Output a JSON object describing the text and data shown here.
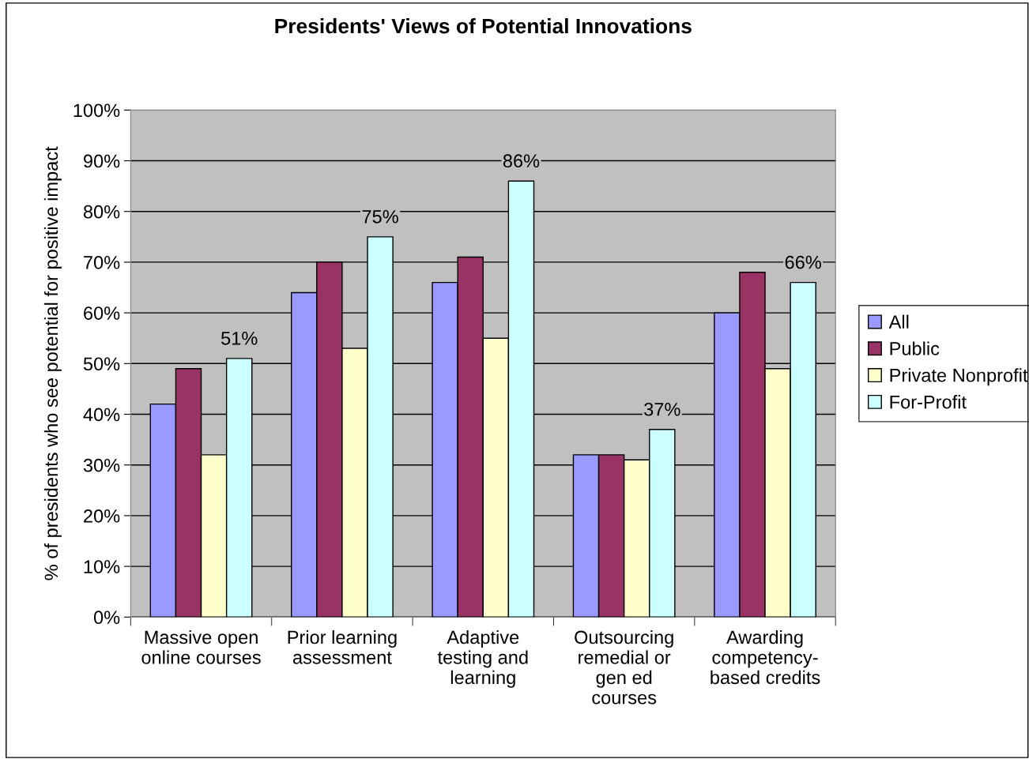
{
  "chart_data": {
    "type": "bar",
    "title": "Presidents' Views of Potential Innovations",
    "ylabel": "% of presidents who see potential for positive impact",
    "categories": [
      "Massive open\nonline courses",
      "Prior learning\nassessment",
      "Adaptive\ntesting and\nlearning",
      "Outsourcing\nremedial or\ngen ed\ncourses",
      "Awarding\ncompetency-\nbased credits"
    ],
    "series": [
      {
        "name": "All",
        "color": "#9999ff",
        "values": [
          42,
          64,
          66,
          32,
          60
        ]
      },
      {
        "name": "Public",
        "color": "#993366",
        "values": [
          49,
          70,
          71,
          32,
          68
        ]
      },
      {
        "name": "Private Nonprofit",
        "color": "#ffffcc",
        "values": [
          32,
          53,
          55,
          31,
          49
        ]
      },
      {
        "name": "For-Profit",
        "color": "#ccffff",
        "values": [
          51,
          75,
          86,
          37,
          66
        ],
        "value_labels": [
          "51%",
          "75%",
          "86%",
          "37%",
          "66%"
        ]
      }
    ],
    "ylim": [
      0,
      100
    ],
    "yticks": [
      {
        "value": 0,
        "label": "0%"
      },
      {
        "value": 10,
        "label": "10%"
      },
      {
        "value": 20,
        "label": "20%"
      },
      {
        "value": 30,
        "label": "30%"
      },
      {
        "value": 40,
        "label": "40%"
      },
      {
        "value": 50,
        "label": "50%"
      },
      {
        "value": 60,
        "label": "60%"
      },
      {
        "value": 70,
        "label": "70%"
      },
      {
        "value": 80,
        "label": "80%"
      },
      {
        "value": 90,
        "label": "90%"
      },
      {
        "value": 100,
        "label": "100%"
      }
    ],
    "grid": "y",
    "legend": "right"
  }
}
